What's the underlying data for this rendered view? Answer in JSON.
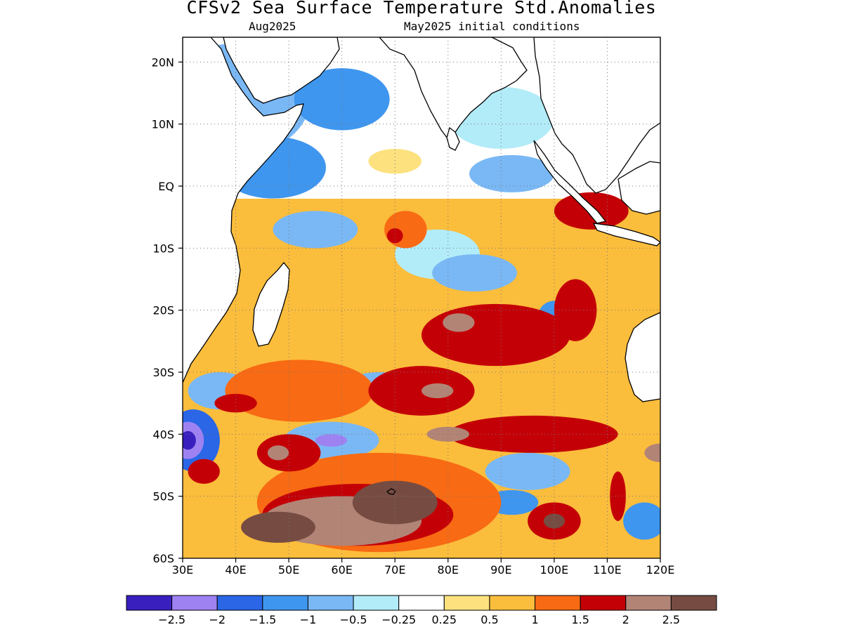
{
  "title": "CFSv2 Sea Surface Temperature Std.Anomalies",
  "subtitle_left": "Aug2025",
  "subtitle_right": "May2025 initial conditions",
  "map": {
    "lon_range": [
      30,
      120
    ],
    "lat_range": [
      -60,
      24
    ],
    "lon_ticks": [
      "30E",
      "40E",
      "50E",
      "60E",
      "70E",
      "80E",
      "90E",
      "100E",
      "110E",
      "120E"
    ],
    "lat_ticks": [
      "20N",
      "10N",
      "EQ",
      "10S",
      "20S",
      "30S",
      "40S",
      "50S",
      "60S"
    ],
    "grid": "dotted"
  },
  "colorbar": {
    "colors": [
      "#3a1fbf",
      "#9e82f2",
      "#2a66e6",
      "#3f96ee",
      "#7ab8f5",
      "#b2ecf8",
      "#ffffff",
      "#fde17e",
      "#fbbd3c",
      "#f86a13",
      "#c40007",
      "#b28476",
      "#764c42"
    ],
    "labels": [
      "−2.5",
      "−2",
      "−1.5",
      "−1",
      "−0.5",
      "−0.25",
      "0.25",
      "0.5",
      "1",
      "1.5",
      "2",
      "2.5"
    ]
  },
  "patches": [
    {
      "lon": 40,
      "lat": 14,
      "rx": 14,
      "ry": 9,
      "level": 4
    },
    {
      "lon": 60,
      "lat": 14,
      "rx": 9,
      "ry": 5,
      "level": 3
    },
    {
      "lon": 47,
      "lat": 3,
      "rx": 10,
      "ry": 5,
      "level": 3
    },
    {
      "lon": 55,
      "lat": -7,
      "rx": 8,
      "ry": 3,
      "level": 4
    },
    {
      "lon": 90,
      "lat": 11,
      "rx": 10,
      "ry": 5,
      "level": 5
    },
    {
      "lon": 92,
      "lat": 2,
      "rx": 8,
      "ry": 3,
      "level": 4
    },
    {
      "lon": 70,
      "lat": 4,
      "rx": 5,
      "ry": 2,
      "level": 7
    },
    {
      "lon": 78,
      "lat": -11,
      "rx": 8,
      "ry": 4,
      "level": 5
    },
    {
      "lon": 85,
      "lat": -14,
      "rx": 8,
      "ry": 3,
      "level": 4
    },
    {
      "lon": 100,
      "lat": -21,
      "rx": 3,
      "ry": 2.5,
      "level": 3
    },
    {
      "lon": 67,
      "lat": -32,
      "rx": 6,
      "ry": 2,
      "level": 4
    },
    {
      "lon": 58,
      "lat": -41,
      "rx": 9,
      "ry": 3,
      "level": 4
    },
    {
      "lon": 58,
      "lat": -41,
      "rx": 3,
      "ry": 1,
      "level": 1
    },
    {
      "lon": 37,
      "lat": -33,
      "rx": 6,
      "ry": 3,
      "level": 4
    },
    {
      "lon": 32,
      "lat": -41,
      "rx": 5,
      "ry": 5,
      "level": 2
    },
    {
      "lon": 31,
      "lat": -41,
      "rx": 3,
      "ry": 3,
      "level": 1
    },
    {
      "lon": 31,
      "lat": -41,
      "rx": 1.5,
      "ry": 1.5,
      "level": 0
    },
    {
      "lon": 95,
      "lat": -46,
      "rx": 8,
      "ry": 3,
      "level": 4
    },
    {
      "lon": 92,
      "lat": -51,
      "rx": 5,
      "ry": 2,
      "level": 3
    },
    {
      "lon": 117,
      "lat": -54,
      "rx": 4,
      "ry": 3,
      "level": 3
    },
    {
      "lon": 113,
      "lat": -41,
      "rx": 8,
      "ry": 3,
      "level": 8
    },
    {
      "lon": 52,
      "lat": -33,
      "rx": 14,
      "ry": 5,
      "level": 9
    },
    {
      "lon": 75,
      "lat": -33,
      "rx": 10,
      "ry": 4,
      "level": 10
    },
    {
      "lon": 78,
      "lat": -33,
      "rx": 3,
      "ry": 1.2,
      "level": 11
    },
    {
      "lon": 89,
      "lat": -24,
      "rx": 14,
      "ry": 5,
      "level": 10
    },
    {
      "lon": 82,
      "lat": -22,
      "rx": 3,
      "ry": 1.5,
      "level": 11
    },
    {
      "lon": 104,
      "lat": -20,
      "rx": 4,
      "ry": 5,
      "level": 10
    },
    {
      "lon": 72,
      "lat": -7,
      "rx": 4,
      "ry": 3,
      "level": 9
    },
    {
      "lon": 70,
      "lat": -8,
      "rx": 1.5,
      "ry": 1.2,
      "level": 10
    },
    {
      "lon": 107,
      "lat": -4,
      "rx": 7,
      "ry": 3,
      "level": 10
    },
    {
      "lon": 96,
      "lat": -40,
      "rx": 16,
      "ry": 3,
      "level": 10
    },
    {
      "lon": 80,
      "lat": -40,
      "rx": 4,
      "ry": 1.2,
      "level": 11
    },
    {
      "lon": 67,
      "lat": -51,
      "rx": 23,
      "ry": 8,
      "level": 9
    },
    {
      "lon": 63,
      "lat": -53,
      "rx": 18,
      "ry": 5,
      "level": 10
    },
    {
      "lon": 60,
      "lat": -54,
      "rx": 15,
      "ry": 4,
      "level": 11
    },
    {
      "lon": 70,
      "lat": -51,
      "rx": 8,
      "ry": 3.5,
      "level": 12
    },
    {
      "lon": 48,
      "lat": -55,
      "rx": 7,
      "ry": 2.5,
      "level": 12
    },
    {
      "lon": 50,
      "lat": -43,
      "rx": 6,
      "ry": 3,
      "level": 10
    },
    {
      "lon": 48,
      "lat": -43,
      "rx": 2,
      "ry": 1.2,
      "level": 11
    },
    {
      "lon": 100,
      "lat": -54,
      "rx": 5,
      "ry": 3,
      "level": 10
    },
    {
      "lon": 100,
      "lat": -54,
      "rx": 2,
      "ry": 1.2,
      "level": 12
    },
    {
      "lon": 34,
      "lat": -46,
      "rx": 3,
      "ry": 2,
      "level": 10
    },
    {
      "lon": 40,
      "lat": -35,
      "rx": 4,
      "ry": 1.5,
      "level": 10
    },
    {
      "lon": 112,
      "lat": -50,
      "rx": 1.5,
      "ry": 4,
      "level": 10
    },
    {
      "lon": 120,
      "lat": -43,
      "rx": 3,
      "ry": 1.5,
      "level": 11
    }
  ]
}
